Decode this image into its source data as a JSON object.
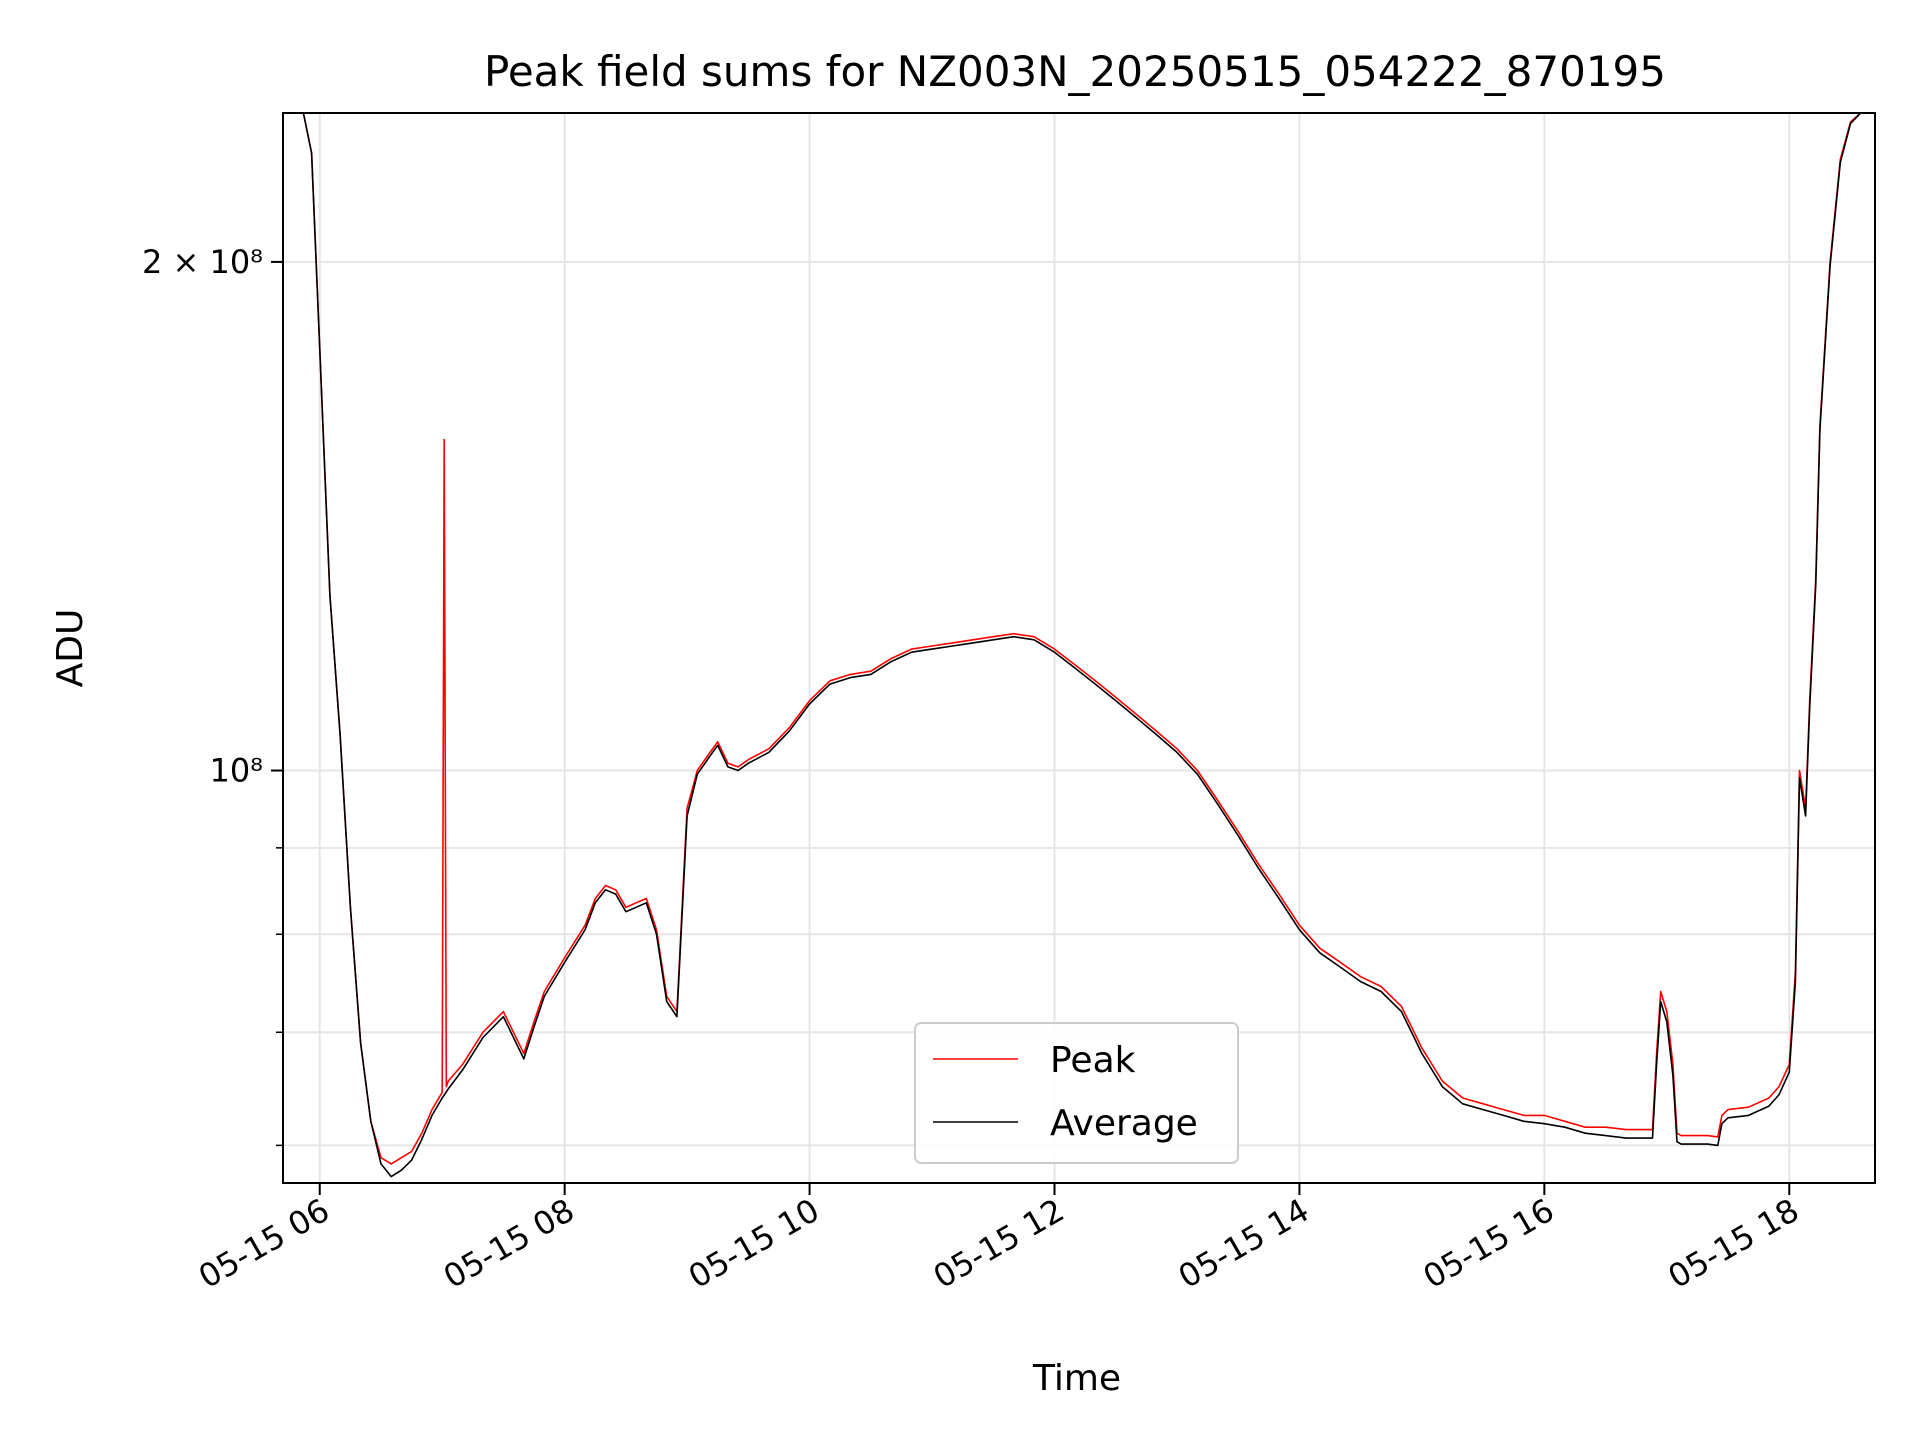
{
  "chart_data": {
    "type": "line",
    "title": "Peak field sums for NZ003N_20250515_054222_870195",
    "xlabel": "Time",
    "ylabel": "ADU",
    "yscale": "log",
    "grid": true,
    "legend_position": "bottom-center",
    "xlim": [
      "05-15 05:42",
      "05-15 18:42"
    ],
    "ylim": [
      57000000,
      245000000
    ],
    "x_ticks": [
      "05-15 06",
      "05-15 08",
      "05-15 10",
      "05-15 12",
      "05-15 14",
      "05-15 16",
      "05-15 18"
    ],
    "y_ticks": [
      {
        "value": 200000000,
        "label": "2 × 10⁸"
      },
      {
        "value": 100000000,
        "label": "10⁸"
      }
    ],
    "y_minor_ticks": [
      60000000,
      70000000,
      80000000,
      90000000
    ],
    "series": [
      {
        "name": "Peak",
        "color": "#ff0000",
        "x": [
          "05-15 05:42",
          "05-15 05:52",
          "05-15 05:56",
          "05-15 06:00",
          "05-15 06:05",
          "05-15 06:10",
          "05-15 06:15",
          "05-15 06:20",
          "05-15 06:25",
          "05-15 06:30",
          "05-15 06:35",
          "05-15 06:40",
          "05-15 06:45",
          "05-15 06:50",
          "05-15 06:55",
          "05-15 07:00",
          "05-15 07:01",
          "05-15 07:02",
          "05-15 07:03",
          "05-15 07:10",
          "05-15 07:20",
          "05-15 07:30",
          "05-15 07:40",
          "05-15 07:45",
          "05-15 07:50",
          "05-15 08:00",
          "05-15 08:10",
          "05-15 08:15",
          "05-15 08:20",
          "05-15 08:25",
          "05-15 08:30",
          "05-15 08:35",
          "05-15 08:40",
          "05-15 08:45",
          "05-15 08:50",
          "05-15 08:55",
          "05-15 09:00",
          "05-15 09:05",
          "05-15 09:10",
          "05-15 09:15",
          "05-15 09:20",
          "05-15 09:25",
          "05-15 09:30",
          "05-15 09:40",
          "05-15 09:50",
          "05-15 10:00",
          "05-15 10:10",
          "05-15 10:20",
          "05-15 10:30",
          "05-15 10:40",
          "05-15 10:50",
          "05-15 11:00",
          "05-15 11:10",
          "05-15 11:20",
          "05-15 11:30",
          "05-15 11:40",
          "05-15 11:50",
          "05-15 12:00",
          "05-15 12:10",
          "05-15 12:20",
          "05-15 12:30",
          "05-15 12:40",
          "05-15 12:50",
          "05-15 13:00",
          "05-15 13:10",
          "05-15 13:20",
          "05-15 13:30",
          "05-15 13:40",
          "05-15 13:50",
          "05-15 14:00",
          "05-15 14:10",
          "05-15 14:20",
          "05-15 14:30",
          "05-15 14:40",
          "05-15 14:50",
          "05-15 15:00",
          "05-15 15:10",
          "05-15 15:20",
          "05-15 15:30",
          "05-15 15:40",
          "05-15 15:50",
          "05-15 16:00",
          "05-15 16:10",
          "05-15 16:20",
          "05-15 16:30",
          "05-15 16:40",
          "05-15 16:50",
          "05-15 16:53",
          "05-15 16:55",
          "05-15 16:57",
          "05-15 17:00",
          "05-15 17:03",
          "05-15 17:05",
          "05-15 17:07",
          "05-15 17:10",
          "05-15 17:20",
          "05-15 17:25",
          "05-15 17:27",
          "05-15 17:30",
          "05-15 17:40",
          "05-15 17:50",
          "05-15 17:55",
          "05-15 18:00",
          "05-15 18:03",
          "05-15 18:05",
          "05-15 18:08",
          "05-15 18:10",
          "05-15 18:13",
          "05-15 18:15",
          "05-15 18:20",
          "05-15 18:25",
          "05-15 18:30",
          "05-15 18:35",
          "05-15 18:40",
          "05-15 18:42"
        ],
        "y": [
          245000000,
          245000000,
          232000000,
          178000000,
          127000000,
          105000000,
          83000000,
          69000000,
          62000000,
          59000000,
          58500000,
          59000000,
          59500000,
          61000000,
          63000000,
          64500000,
          157000000,
          65000000,
          65500000,
          67000000,
          70000000,
          72000000,
          68000000,
          71000000,
          74000000,
          77500000,
          81000000,
          84000000,
          85500000,
          85000000,
          83000000,
          83500000,
          84000000,
          80500000,
          73500000,
          72000000,
          95000000,
          100000000,
          102000000,
          104000000,
          101000000,
          100500000,
          101500000,
          103000000,
          106000000,
          110000000,
          113000000,
          114000000,
          114500000,
          116500000,
          118000000,
          118500000,
          119000000,
          119500000,
          120000000,
          120500000,
          120000000,
          118000000,
          115500000,
          113000000,
          110500000,
          108000000,
          105500000,
          103000000,
          100000000,
          96000000,
          92000000,
          88000000,
          84500000,
          81000000,
          78500000,
          77000000,
          75500000,
          74500000,
          72500000,
          68500000,
          65500000,
          64000000,
          63500000,
          63000000,
          62500000,
          62500000,
          62000000,
          61500000,
          61500000,
          61300000,
          61300000,
          61300000,
          68000000,
          74000000,
          72000000,
          67000000,
          61000000,
          60800000,
          60800000,
          60800000,
          60700000,
          62500000,
          63000000,
          63200000,
          64000000,
          65000000,
          67000000,
          76000000,
          100000000,
          95000000,
          110000000,
          130000000,
          160000000,
          200000000,
          230000000,
          242000000,
          245000000,
          245000000,
          245000000
        ]
      },
      {
        "name": "Average",
        "color": "#000000",
        "x": [
          "05-15 05:42",
          "05-15 05:52",
          "05-15 05:56",
          "05-15 06:00",
          "05-15 06:05",
          "05-15 06:10",
          "05-15 06:15",
          "05-15 06:20",
          "05-15 06:25",
          "05-15 06:30",
          "05-15 06:35",
          "05-15 06:40",
          "05-15 06:45",
          "05-15 06:50",
          "05-15 06:55",
          "05-15 07:00",
          "05-15 07:03",
          "05-15 07:10",
          "05-15 07:20",
          "05-15 07:30",
          "05-15 07:40",
          "05-15 07:45",
          "05-15 07:50",
          "05-15 08:00",
          "05-15 08:10",
          "05-15 08:15",
          "05-15 08:20",
          "05-15 08:25",
          "05-15 08:30",
          "05-15 08:35",
          "05-15 08:40",
          "05-15 08:45",
          "05-15 08:50",
          "05-15 08:55",
          "05-15 09:00",
          "05-15 09:05",
          "05-15 09:10",
          "05-15 09:15",
          "05-15 09:20",
          "05-15 09:25",
          "05-15 09:30",
          "05-15 09:40",
          "05-15 09:50",
          "05-15 10:00",
          "05-15 10:10",
          "05-15 10:20",
          "05-15 10:30",
          "05-15 10:40",
          "05-15 10:50",
          "05-15 11:00",
          "05-15 11:10",
          "05-15 11:20",
          "05-15 11:30",
          "05-15 11:40",
          "05-15 11:50",
          "05-15 12:00",
          "05-15 12:10",
          "05-15 12:20",
          "05-15 12:30",
          "05-15 12:40",
          "05-15 12:50",
          "05-15 13:00",
          "05-15 13:10",
          "05-15 13:20",
          "05-15 13:30",
          "05-15 13:40",
          "05-15 13:50",
          "05-15 14:00",
          "05-15 14:10",
          "05-15 14:20",
          "05-15 14:30",
          "05-15 14:40",
          "05-15 14:50",
          "05-15 15:00",
          "05-15 15:10",
          "05-15 15:20",
          "05-15 15:30",
          "05-15 15:40",
          "05-15 15:50",
          "05-15 16:00",
          "05-15 16:10",
          "05-15 16:20",
          "05-15 16:30",
          "05-15 16:40",
          "05-15 16:50",
          "05-15 16:53",
          "05-15 16:55",
          "05-15 16:57",
          "05-15 17:00",
          "05-15 17:03",
          "05-15 17:05",
          "05-15 17:07",
          "05-15 17:10",
          "05-15 17:20",
          "05-15 17:25",
          "05-15 17:27",
          "05-15 17:30",
          "05-15 17:40",
          "05-15 17:50",
          "05-15 17:55",
          "05-15 18:00",
          "05-15 18:03",
          "05-15 18:05",
          "05-15 18:08",
          "05-15 18:10",
          "05-15 18:13",
          "05-15 18:15",
          "05-15 18:20",
          "05-15 18:25",
          "05-15 18:30",
          "05-15 18:35",
          "05-15 18:40",
          "05-15 18:42"
        ],
        "y": [
          245000000,
          245000000,
          232000000,
          178000000,
          127000000,
          105000000,
          83000000,
          69000000,
          62000000,
          58500000,
          57500000,
          58000000,
          58800000,
          60500000,
          62500000,
          64000000,
          64800000,
          66500000,
          69500000,
          71500000,
          67500000,
          70500000,
          73500000,
          77000000,
          80500000,
          83500000,
          85000000,
          84500000,
          82500000,
          83000000,
          83500000,
          80000000,
          73000000,
          71500000,
          94000000,
          99500000,
          101500000,
          103500000,
          100500000,
          100000000,
          101000000,
          102500000,
          105500000,
          109500000,
          112500000,
          113500000,
          114000000,
          116000000,
          117500000,
          118000000,
          118500000,
          119000000,
          119500000,
          120000000,
          119500000,
          117500000,
          115000000,
          112500000,
          110000000,
          107500000,
          105000000,
          102500000,
          99500000,
          95500000,
          91500000,
          87500000,
          84000000,
          80500000,
          78000000,
          76500000,
          75000000,
          74000000,
          72000000,
          68000000,
          65000000,
          63500000,
          63000000,
          62500000,
          62000000,
          61800000,
          61500000,
          61000000,
          60800000,
          60600000,
          60600000,
          60600000,
          67000000,
          73000000,
          71000000,
          66000000,
          60300000,
          60100000,
          60100000,
          60100000,
          60000000,
          61800000,
          62300000,
          62500000,
          63300000,
          64300000,
          66300000,
          75000000,
          99000000,
          94000000,
          109000000,
          129000000,
          159000000,
          199000000,
          229000000,
          241500000,
          245000000,
          245000000,
          245000000
        ]
      }
    ]
  }
}
